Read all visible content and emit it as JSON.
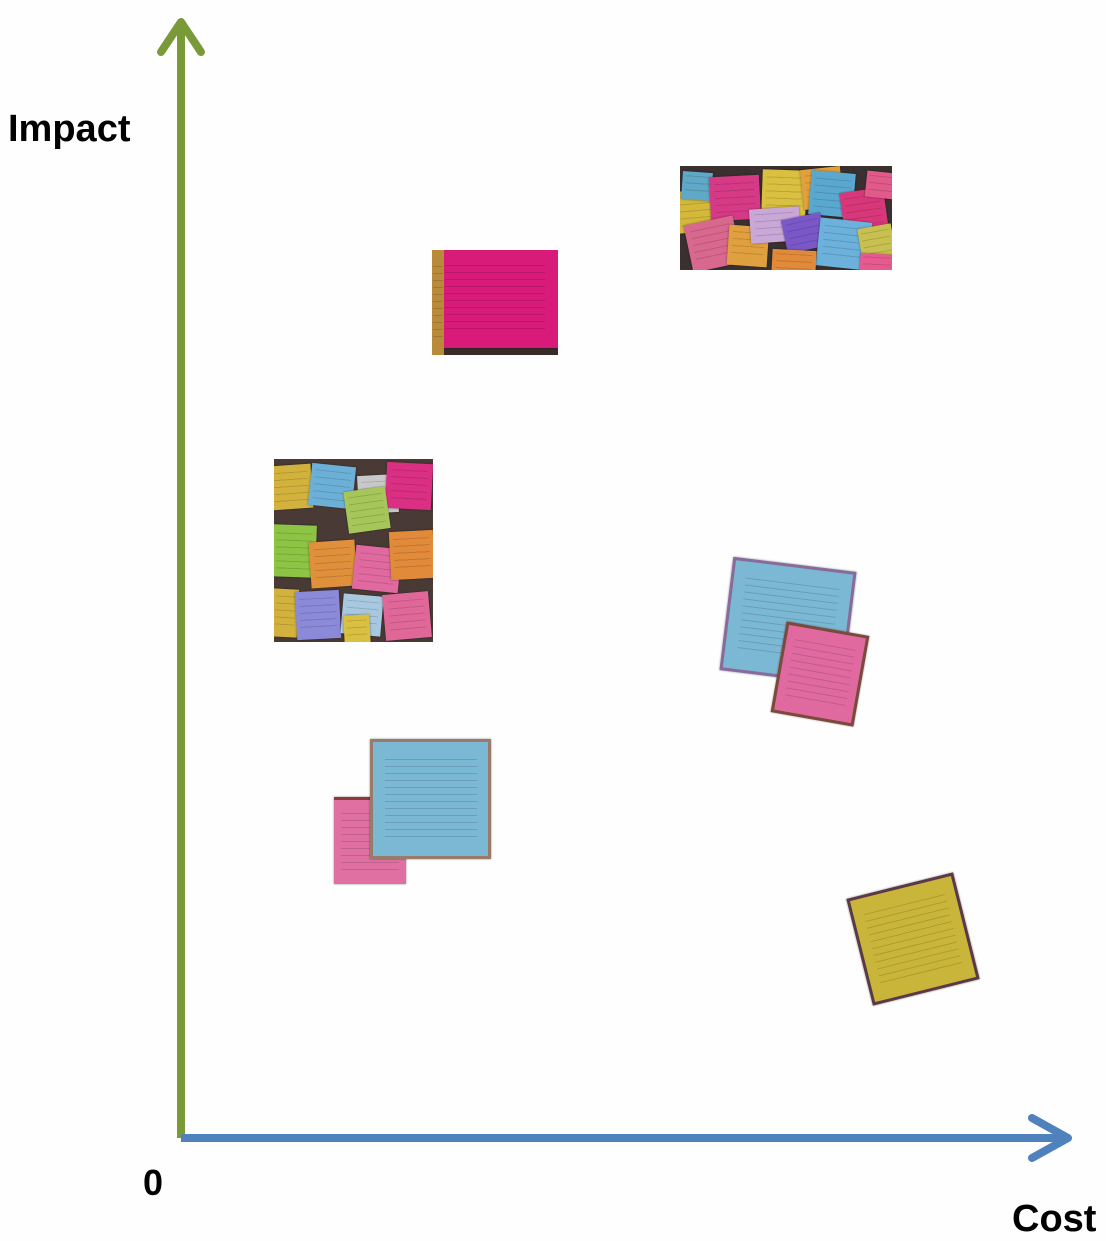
{
  "axes": {
    "y_label": "Impact",
    "x_label": "Cost",
    "origin_label": "0",
    "y_color": "#7a9a3a",
    "x_color": "#4f81bd"
  },
  "notes": [
    {
      "name": "sticky-note-cluster-high-impact-high-cost",
      "kind": "photo-cluster"
    },
    {
      "name": "sticky-note-pink-high-impact",
      "kind": "single",
      "color": "#d81b79"
    },
    {
      "name": "sticky-note-cluster-medium-impact-low-cost",
      "kind": "photo-cluster"
    },
    {
      "name": "sticky-note-pair-medium-impact-high-cost",
      "kind": "pair"
    },
    {
      "name": "sticky-note-pair-low-impact-low-cost",
      "kind": "pair"
    },
    {
      "name": "sticky-note-yellow-low-impact-high-cost",
      "kind": "single",
      "color": "#c9b53a"
    }
  ]
}
